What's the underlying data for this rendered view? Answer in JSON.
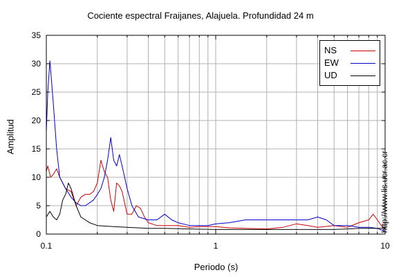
{
  "chart_data": {
    "type": "line",
    "title": "Cociente espectral Fraijanes, Alajuela. Profundidad 24 m",
    "xlabel": "Periodo (s)",
    "ylabel": "Amplitud",
    "xscale": "log",
    "xlim": [
      0.1,
      10
    ],
    "ylim": [
      0,
      35
    ],
    "xticks": [
      {
        "value": 0.1,
        "label": "0.1"
      },
      {
        "value": 1,
        "label": "1"
      },
      {
        "value": 10,
        "label": "10"
      }
    ],
    "yticks": [
      0,
      5,
      10,
      15,
      20,
      25,
      30,
      35
    ],
    "grid": true,
    "legend_position": "top-right",
    "series": [
      {
        "name": "NS",
        "color": "#cc0000",
        "x": [
          0.1,
          0.102,
          0.106,
          0.11,
          0.115,
          0.12,
          0.13,
          0.14,
          0.15,
          0.16,
          0.17,
          0.18,
          0.19,
          0.2,
          0.21,
          0.22,
          0.23,
          0.24,
          0.25,
          0.26,
          0.27,
          0.28,
          0.3,
          0.32,
          0.34,
          0.36,
          0.38,
          0.4,
          0.45,
          0.5,
          0.6,
          0.7,
          0.8,
          1.0,
          1.2,
          1.5,
          2.0,
          2.5,
          3.0,
          3.5,
          4.0,
          5.0,
          6.0,
          7.0,
          8.0,
          8.5,
          9.0,
          9.5,
          10.0
        ],
        "y": [
          11,
          12,
          10,
          10.5,
          11.5,
          10,
          8,
          7.5,
          5,
          6.5,
          7,
          7,
          7.5,
          9,
          13,
          11,
          10,
          6,
          4,
          9,
          8.5,
          7.5,
          3.5,
          3.5,
          5,
          4.5,
          3,
          2,
          1.5,
          1.5,
          1.5,
          1.2,
          1.3,
          1.3,
          1.1,
          1.0,
          0.9,
          1.2,
          1.8,
          1.5,
          1.2,
          1.5,
          1.2,
          2,
          2.5,
          3.5,
          2.5,
          1.5,
          1.0
        ]
      },
      {
        "name": "EW",
        "color": "#0000cc",
        "x": [
          0.1,
          0.102,
          0.105,
          0.11,
          0.115,
          0.12,
          0.13,
          0.14,
          0.15,
          0.16,
          0.17,
          0.18,
          0.19,
          0.2,
          0.21,
          0.22,
          0.23,
          0.24,
          0.25,
          0.26,
          0.27,
          0.28,
          0.3,
          0.32,
          0.35,
          0.4,
          0.45,
          0.5,
          0.55,
          0.6,
          0.7,
          0.8,
          0.9,
          1.0,
          1.2,
          1.5,
          2.0,
          2.5,
          3.0,
          3.5,
          4.0,
          4.5,
          5.0,
          6.0,
          7.0,
          8.0,
          9.0,
          10.0
        ],
        "y": [
          18,
          25,
          30.5,
          23,
          15,
          10,
          8,
          6.5,
          5.5,
          5,
          5,
          5.5,
          6,
          7,
          8,
          10,
          13,
          17,
          13,
          12,
          14,
          12,
          8,
          5,
          3,
          2.5,
          2.5,
          3.5,
          2.5,
          2,
          1.5,
          1.5,
          1.5,
          1.8,
          2,
          2.5,
          2.5,
          2.5,
          2.5,
          2.5,
          3,
          2.5,
          1.5,
          1.5,
          1.2,
          1.2,
          1.0,
          0.5
        ]
      },
      {
        "name": "UD",
        "color": "#000000",
        "x": [
          0.1,
          0.105,
          0.11,
          0.115,
          0.12,
          0.125,
          0.13,
          0.135,
          0.14,
          0.15,
          0.16,
          0.17,
          0.18,
          0.2,
          0.25,
          0.3,
          0.4,
          0.5,
          0.7,
          1.0,
          1.5,
          2.0,
          3.0,
          4.0,
          5.0,
          6.0,
          7.0,
          8.0,
          9.0,
          10.0
        ],
        "y": [
          3,
          4,
          3,
          2.5,
          3.5,
          6,
          7,
          9,
          8,
          5,
          3,
          2.5,
          2,
          1.5,
          1.3,
          1.2,
          1,
          1,
          0.9,
          0.8,
          0.8,
          0.8,
          0.8,
          0.8,
          0.8,
          0.9,
          1,
          1,
          1,
          1
        ]
      }
    ]
  },
  "credit": "http://www.lis.ucr.ac.cr"
}
